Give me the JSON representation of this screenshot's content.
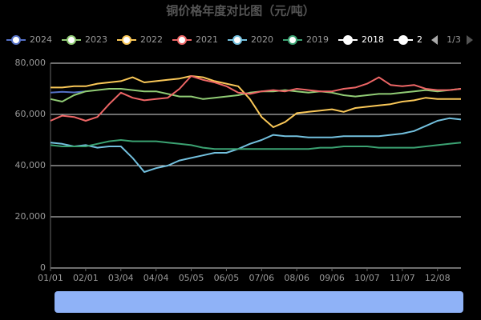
{
  "chart_data": {
    "type": "line",
    "title": "铜价格年度对比图（元/吨）",
    "categories": [
      "01/01",
      null,
      null,
      "02/01",
      null,
      null,
      "03/04",
      null,
      null,
      "04/04",
      null,
      null,
      "05/05",
      null,
      null,
      "06/05",
      null,
      null,
      "07/06",
      null,
      null,
      "08/06",
      null,
      null,
      "09/06",
      null,
      null,
      "10/07",
      null,
      null,
      "11/07",
      null,
      null,
      "12/08",
      null,
      null
    ],
    "series": [
      {
        "name": "2024",
        "color": "#5470c6",
        "values": [
          68500,
          68800,
          68600,
          69000,
          null,
          null,
          null,
          null,
          null,
          null,
          null,
          null,
          null,
          null,
          null,
          null,
          null,
          null,
          null,
          null,
          null,
          null,
          null,
          null,
          null,
          null,
          null,
          null,
          null,
          null,
          null,
          null,
          null,
          null,
          null,
          null
        ]
      },
      {
        "name": "2023",
        "color": "#91cc75",
        "values": [
          66000,
          65000,
          67500,
          69000,
          69500,
          70000,
          70000,
          69500,
          69000,
          69000,
          68000,
          67000,
          67000,
          66000,
          66500,
          67000,
          67500,
          68500,
          69000,
          69000,
          69500,
          69000,
          68500,
          69000,
          68500,
          67500,
          67000,
          67500,
          68000,
          68000,
          68500,
          69000,
          69500,
          69000,
          69500,
          70000
        ]
      },
      {
        "name": "2022",
        "color": "#fac858",
        "values": [
          70500,
          70500,
          71000,
          71000,
          72000,
          72500,
          73000,
          74500,
          72500,
          73000,
          73500,
          74000,
          75000,
          74500,
          73000,
          72000,
          71000,
          66000,
          59000,
          55000,
          57000,
          60500,
          61000,
          61500,
          62000,
          61000,
          62500,
          63000,
          63500,
          64000,
          65000,
          65500,
          66500,
          66000,
          66000,
          66000
        ]
      },
      {
        "name": "2021",
        "color": "#ee6666",
        "values": [
          57500,
          59500,
          59000,
          57500,
          59000,
          64000,
          68500,
          66500,
          65500,
          66000,
          66500,
          70000,
          75000,
          73500,
          72500,
          71000,
          68500,
          68000,
          69000,
          69500,
          69000,
          70000,
          69500,
          69000,
          69000,
          70000,
          70500,
          72000,
          74500,
          71500,
          71000,
          71500,
          70000,
          69500,
          69500,
          70000
        ]
      },
      {
        "name": "2020",
        "color": "#73c0de",
        "values": [
          49000,
          48500,
          47500,
          48000,
          47000,
          47500,
          47500,
          43000,
          37500,
          39000,
          40000,
          42000,
          43000,
          44000,
          45000,
          45000,
          46500,
          48500,
          50000,
          52000,
          51500,
          51500,
          51000,
          51000,
          51000,
          51500,
          51500,
          51500,
          51500,
          52000,
          52500,
          53500,
          55500,
          57500,
          58500,
          58000
        ]
      },
      {
        "name": "2019",
        "color": "#3ba272",
        "values": [
          48000,
          47500,
          47500,
          47500,
          48500,
          49500,
          50000,
          49500,
          49500,
          49500,
          49000,
          48500,
          48000,
          47000,
          46500,
          46500,
          46500,
          46500,
          46500,
          46500,
          46500,
          46500,
          46500,
          47000,
          47000,
          47500,
          47500,
          47500,
          47000,
          47000,
          47000,
          47000,
          47500,
          48000,
          48500,
          49000
        ]
      }
    ],
    "legend_extra": [
      {
        "name": "2018",
        "color": "#ffffff"
      },
      {
        "name": "2",
        "color": "#ffffff"
      }
    ],
    "legend_page": "1/3",
    "ylim": [
      0,
      80000
    ],
    "yticks": [
      0,
      {
        "value": 20000,
        "label": "20,000"
      },
      {
        "value": 40000,
        "label": "40,000"
      },
      {
        "value": 60000,
        "label": "60,000"
      },
      {
        "value": 80000,
        "label": "80,000"
      }
    ],
    "grid": true
  }
}
